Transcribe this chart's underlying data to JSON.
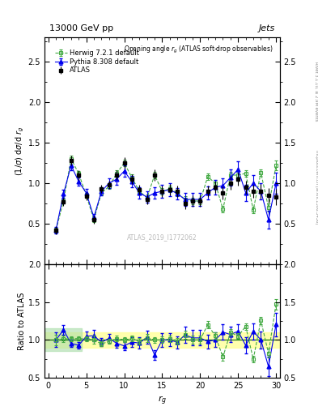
{
  "title_top": "13000 GeV pp",
  "title_right": "Jets",
  "plot_title": "Opening angle r$_g$ (ATLAS soft-drop observables)",
  "ylabel_main": "(1/σ) dσ/d r_g",
  "ylabel_ratio": "Ratio to ATLAS",
  "xlabel": "r_g",
  "watermark": "ATLAS_2019_I1772062",
  "right_label": "mcplots.cern.ch [arXiv:1306.3436]",
  "right_label2": "Rivet 3.1.10, ≥ 2.9M events",
  "ylim_main": [
    0.0,
    2.8
  ],
  "ylim_ratio": [
    0.5,
    2.0
  ],
  "xlim": [
    -0.5,
    30.5
  ],
  "yticks_main": [
    0.5,
    1.0,
    1.5,
    2.0,
    2.5
  ],
  "yticks_ratio": [
    0.5,
    1.0,
    1.5,
    2.0
  ],
  "xticks": [
    0,
    5,
    10,
    15,
    20,
    25,
    30
  ],
  "atlas_x": [
    1,
    2,
    3,
    4,
    5,
    6,
    7,
    8,
    9,
    10,
    11,
    12,
    13,
    14,
    15,
    16,
    17,
    18,
    19,
    20,
    21,
    22,
    23,
    24,
    25,
    26,
    27,
    28,
    29,
    30
  ],
  "atlas_y": [
    0.42,
    0.77,
    1.28,
    1.1,
    0.84,
    0.55,
    0.93,
    0.98,
    1.1,
    1.25,
    1.05,
    0.92,
    0.8,
    1.1,
    0.9,
    0.92,
    0.9,
    0.75,
    0.78,
    0.78,
    0.9,
    0.95,
    0.88,
    1.0,
    1.05,
    0.95,
    0.9,
    0.9,
    0.85,
    0.83
  ],
  "atlas_yerr": [
    0.05,
    0.05,
    0.06,
    0.06,
    0.05,
    0.05,
    0.05,
    0.05,
    0.06,
    0.07,
    0.06,
    0.06,
    0.06,
    0.07,
    0.07,
    0.07,
    0.07,
    0.07,
    0.07,
    0.07,
    0.07,
    0.07,
    0.08,
    0.08,
    0.08,
    0.08,
    0.08,
    0.09,
    0.09,
    0.1
  ],
  "herwig_x": [
    1,
    2,
    3,
    4,
    5,
    6,
    7,
    8,
    9,
    10,
    11,
    12,
    13,
    14,
    15,
    16,
    17,
    18,
    19,
    20,
    21,
    22,
    23,
    24,
    25,
    26,
    27,
    28,
    29,
    30
  ],
  "herwig_y": [
    0.42,
    0.78,
    1.3,
    1.12,
    0.85,
    0.55,
    0.88,
    0.96,
    1.12,
    1.25,
    1.07,
    0.9,
    0.82,
    1.1,
    0.9,
    0.93,
    0.88,
    0.8,
    0.78,
    0.78,
    1.08,
    1.0,
    0.68,
    1.1,
    1.1,
    1.12,
    0.67,
    1.13,
    0.7,
    1.22
  ],
  "herwig_yerr": [
    0.03,
    0.03,
    0.04,
    0.03,
    0.03,
    0.03,
    0.03,
    0.03,
    0.04,
    0.04,
    0.04,
    0.04,
    0.04,
    0.04,
    0.04,
    0.04,
    0.04,
    0.04,
    0.04,
    0.04,
    0.04,
    0.04,
    0.04,
    0.04,
    0.04,
    0.04,
    0.04,
    0.04,
    0.05,
    0.06
  ],
  "pythia_x": [
    1,
    2,
    3,
    4,
    5,
    6,
    7,
    8,
    9,
    10,
    11,
    12,
    13,
    14,
    15,
    16,
    17,
    18,
    19,
    20,
    21,
    22,
    23,
    24,
    25,
    26,
    27,
    28,
    29,
    30
  ],
  "pythia_y": [
    0.42,
    0.87,
    1.22,
    1.02,
    0.88,
    0.58,
    0.9,
    1.0,
    1.05,
    1.15,
    1.02,
    0.88,
    0.83,
    0.88,
    0.9,
    0.92,
    0.87,
    0.8,
    0.8,
    0.8,
    0.88,
    0.95,
    0.97,
    1.07,
    1.17,
    0.88,
    1.0,
    0.9,
    0.55,
    1.0
  ],
  "pythia_yerr": [
    0.04,
    0.05,
    0.06,
    0.05,
    0.05,
    0.04,
    0.05,
    0.06,
    0.07,
    0.07,
    0.07,
    0.07,
    0.07,
    0.07,
    0.08,
    0.08,
    0.07,
    0.08,
    0.08,
    0.08,
    0.08,
    0.09,
    0.09,
    0.1,
    0.1,
    0.1,
    0.1,
    0.1,
    0.11,
    0.13
  ],
  "atlas_color": "#000000",
  "herwig_color": "#44AA44",
  "pythia_color": "#0000EE",
  "band_yellow": "#FFFF99",
  "band_green": "#AADDAA",
  "background_color": "#FFFFFF"
}
